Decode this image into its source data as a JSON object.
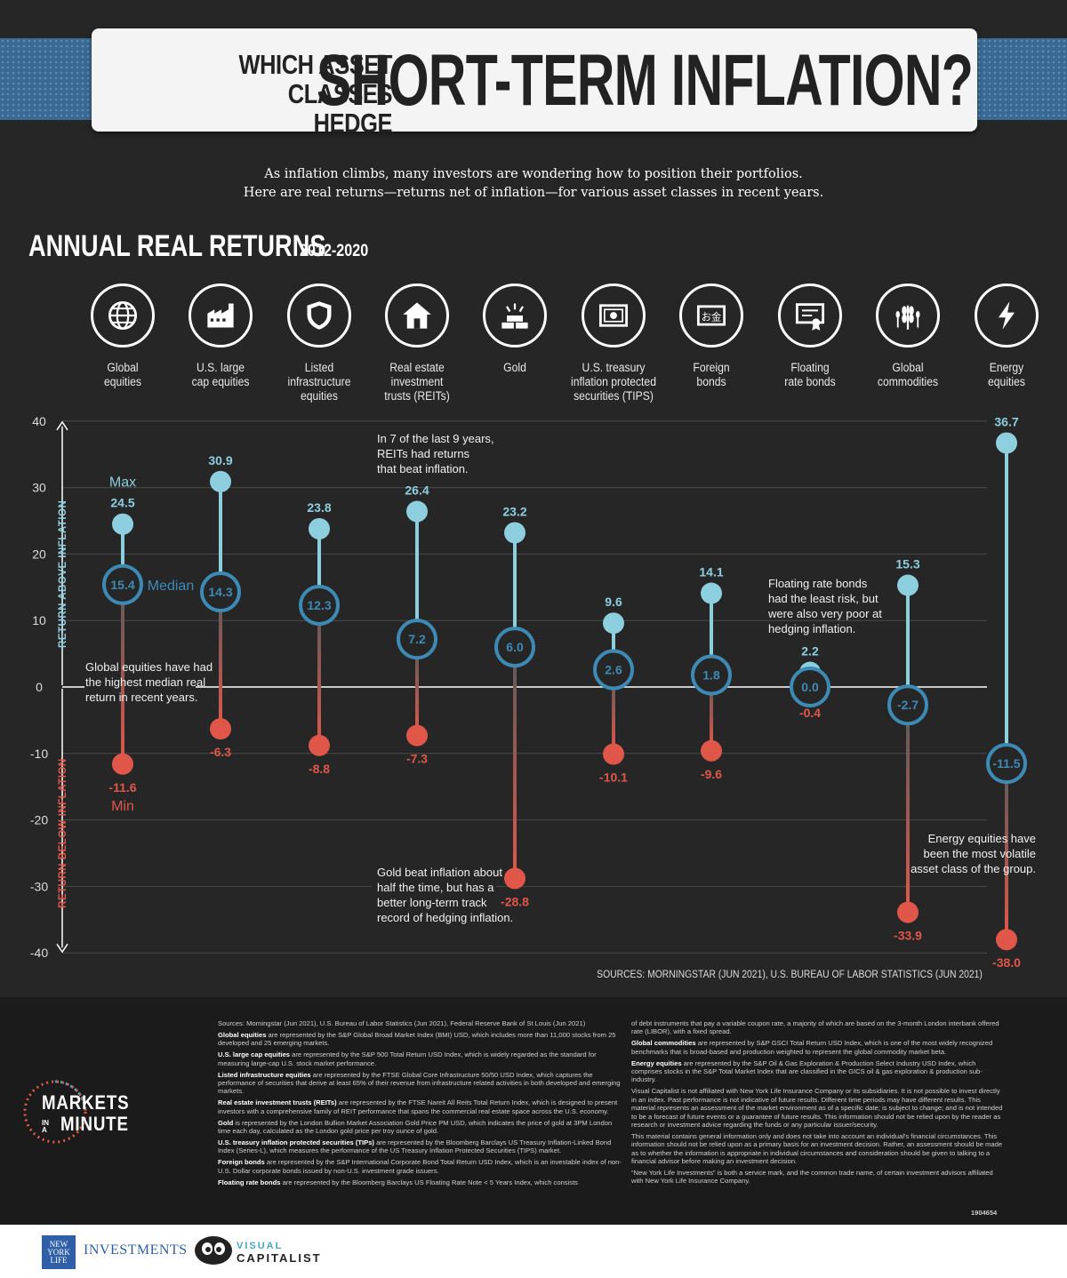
{
  "title": {
    "small_line1": "WHICH ASSET",
    "small_line2": "CLASSES HEDGE",
    "big": "SHORT-TERM INFLATION?"
  },
  "intro": {
    "line1": "As inflation climbs, many investors are wondering how to position their portfolios.",
    "line2": "Here are real returns—returns net of inflation—for various asset classes in recent years."
  },
  "section": {
    "title": "ANNUAL REAL RETURNS",
    "years": "2012-2020"
  },
  "assets": [
    {
      "label1": "Global",
      "label2": "equities",
      "label3": "",
      "icon": "globe-icon"
    },
    {
      "label1": "U.S. large",
      "label2": "cap equities",
      "label3": "",
      "icon": "factory-icon"
    },
    {
      "label1": "Listed",
      "label2": "infrastructure",
      "label3": "equities",
      "icon": "shield-icon"
    },
    {
      "label1": "Real estate",
      "label2": "investment",
      "label3": "trusts (REITs)",
      "icon": "house-icon"
    },
    {
      "label1": "Gold",
      "label2": "",
      "label3": "",
      "icon": "gold-bars-icon"
    },
    {
      "label1": "U.S. treasury",
      "label2": "inflation protected",
      "label3": "securities (TIPS)",
      "icon": "bill-icon"
    },
    {
      "label1": "Foreign",
      "label2": "bonds",
      "label3": "",
      "icon": "foreign-bond-icon"
    },
    {
      "label1": "Floating",
      "label2": "rate bonds",
      "label3": "",
      "icon": "certificate-icon"
    },
    {
      "label1": "Global",
      "label2": "commodities",
      "label3": "",
      "icon": "wheat-icon"
    },
    {
      "label1": "Energy",
      "label2": "equities",
      "label3": "",
      "icon": "lightning-icon"
    }
  ],
  "chart_data": {
    "type": "range-dot",
    "title": "ANNUAL REAL RETURNS 2012-2020",
    "ylim": [
      -40,
      40
    ],
    "yticks": [
      40,
      30,
      20,
      10,
      0,
      -10,
      -20,
      -30,
      -40
    ],
    "ylabel_top": "RETURN ABOVE INFLATION",
    "ylabel_bottom": "RETURN BELOW INFLATION",
    "categories": [
      "Global equities",
      "U.S. large cap equities",
      "Listed infrastructure equities",
      "Real estate investment trusts (REITs)",
      "Gold",
      "U.S. treasury inflation protected securities (TIPS)",
      "Foreign bonds",
      "Floating rate bonds",
      "Global commodities",
      "Energy equities"
    ],
    "max": [
      24.5,
      30.9,
      23.8,
      26.4,
      23.2,
      9.6,
      14.1,
      2.2,
      15.3,
      36.7
    ],
    "median": [
      15.4,
      14.3,
      12.3,
      7.2,
      6.0,
      2.6,
      1.8,
      0.0,
      -2.7,
      -11.5
    ],
    "min": [
      -11.6,
      -6.3,
      -8.8,
      -7.3,
      -28.8,
      -10.1,
      -9.6,
      -0.4,
      -33.9,
      -38.0
    ],
    "legend": {
      "max": "Max",
      "median": "Median",
      "min": "Min"
    },
    "annotations": [
      {
        "id": "global",
        "lines": [
          "Global equities have had",
          "the highest median real",
          "return in recent years."
        ]
      },
      {
        "id": "reits",
        "lines": [
          "In 7 of the last 9 years,",
          "REITs had returns",
          "that beat inflation."
        ]
      },
      {
        "id": "gold",
        "lines": [
          "Gold beat inflation about",
          "half the time, but has a",
          "better long-term track",
          "record of hedging inflation."
        ]
      },
      {
        "id": "floating",
        "lines": [
          "Floating rate bonds",
          "had the least risk, but",
          "were also very poor at",
          "hedging inflation."
        ]
      },
      {
        "id": "energy",
        "lines": [
          "Energy equities have",
          "been the most volatile",
          "asset class of the group."
        ]
      }
    ],
    "colors": {
      "max": "#8ecfdf",
      "median": "#3d8ab5",
      "min": "#e0574a",
      "axis": "#ffffff",
      "grid": "#4a4a4a"
    }
  },
  "sources_line": "SOURCES: MORNINGSTAR (JUN 2021), U.S. BUREAU OF LABOR STATISTICS (JUN 2021)",
  "notes": {
    "sources": "Sources: Morningstar (Jun 2021), U.S. Bureau of Labor Statistics (Jun 2021), Federal Reserve Bank of St Louis (Jun 2021)",
    "left": [
      {
        "term": "Global equities",
        "text": " are represented by the S&P Global Broad Market Index (BMI) USD, which includes more than 11,000 stocks from 25 developed and 25 emerging markets."
      },
      {
        "term": "U.S. large cap equities",
        "text": " are represented by the S&P 500 Total Return USD Index, which is widely regarded as the standard for measuring large-cap U.S. stock market performance."
      },
      {
        "term": "Listed infrastructure equities",
        "text": " are represented by the FTSE Global Core Infrastructure 50/50 USD Index, which captures the performance of securities that derive at least 65% of their revenue from infrastructure related activities in both developed and emerging markets."
      },
      {
        "term": "Real estate investment trusts (REITs)",
        "text": " are represented by the FTSE Nareit All Reits Total Return Index, which is designed to present investors with a comprehensive family of REIT performance that spans the commercial real estate space across the U.S. economy."
      },
      {
        "term": "Gold",
        "text": " is represented by the London Bullion Market Association Gold Price PM USD, which indicates the price of gold at 3PM London time each day, calculated as the London gold price per troy ounce of gold."
      },
      {
        "term": "U.S. treasury inflation protected securities (TIPs)",
        "text": " are represented by the Bloomberg Barclays US Treasury Inflation-Linked Bond Index (Series-L), which measures the performance of the US Treasury Inflation Protected Securities (TIPS) market."
      },
      {
        "term": "Foreign bonds",
        "text": " are represented by the S&P International Corporate Bond Total Return USD Index, which is an investable index of non-U.S. Dollar corporate bonds issued by non-U.S. investment grade issuers."
      },
      {
        "term": "Floating rate bonds",
        "text": " are represented by the Bloomberg Barclays US Floating Rate Note < 5 Years Index, which consists"
      }
    ],
    "right": [
      {
        "term": "",
        "text": "of debt instruments that pay a variable coupon rate, a majority of which are based on the 3-month London interbank offered rate (LIBOR), with a fixed spread."
      },
      {
        "term": "Global commodities",
        "text": " are represented by S&P GSCI Total Return USD Index, which is one of the most widely recognized benchmarks that is broad-based and production weighted to represent the global commodity market beta."
      },
      {
        "term": "Energy equities",
        "text": " are represented by the S&P Oil & Gas Exploration & Production Select Industry USD Index, which comprises stocks in the S&P Total Market Index that are classified in the GICS oil & gas exploration & production sub-industry."
      },
      {
        "term": "",
        "text": "Visual Capitalist is not affiliated with New York Life Insurance Company or its subsidiaries. It is not possible to invest directly in an index. Past performance is not indicative of future results. Different time periods may have different results. This material represents an assessment of the market environment as of a specific date; is subject to change; and is not intended to be a forecast of future events or a guarantee of future results. This information should not be relied upon by the reader as research or investment advice regarding the funds or any particular issuer/security."
      },
      {
        "term": "",
        "text": "This material contains general information only and does not take into account an individual's financial circumstances. This information should not be relied upon as a primary basis for an investment decision. Rather, an assessment should be made as to whether the information is appropriate in individual circumstances and consideration should be given to talking to a financial advisor before making an investment decision."
      },
      {
        "term": "",
        "text": "“New York Life Investments” is both a service mark, and the common trade name, of certain investment advisors affiliated with New York Life Insurance Company."
      }
    ],
    "doc_id": "1904654"
  },
  "branding": {
    "mim_line1": "MARKETS",
    "mim_in": "IN",
    "mim_a": "A",
    "mim_line2": "MINUTE",
    "nyl_logo": [
      "NEW",
      "YORK",
      "LIFE"
    ],
    "nyl_investments": "INVESTMENTS",
    "vc_line1": "VISUAL",
    "vc_line2": "CAPITALIST"
  }
}
